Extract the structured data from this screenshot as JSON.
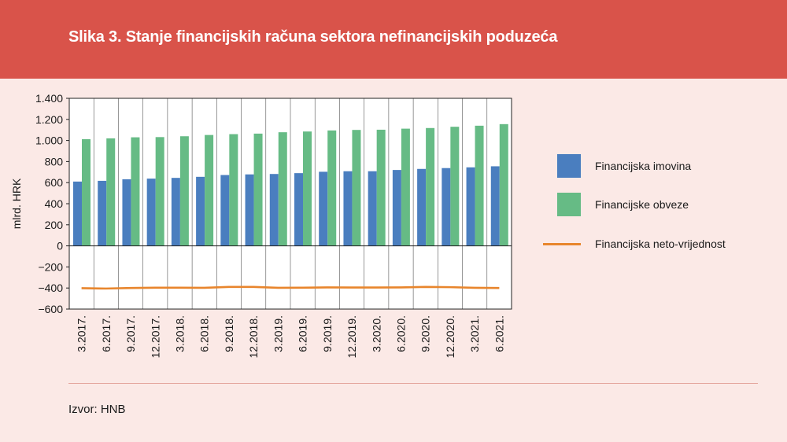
{
  "header": {
    "title": "Slika 3. Stanje financijskih računa sektora nefinancijskih poduzeća"
  },
  "footer": {
    "source": "Izvor: HNB"
  },
  "colors": {
    "header_bg": "#d9534a",
    "background": "#fbe9e6",
    "plot_bg": "#ffffff",
    "assets": "#4a7ebf",
    "liabilities": "#66bb85",
    "net_worth": "#e8852c"
  },
  "chart_data": {
    "type": "bar",
    "title": "",
    "xlabel": "",
    "ylabel": "mlrd. HRK",
    "ylim": [
      -600,
      1400
    ],
    "yticks": [
      -600,
      -400,
      -200,
      0,
      200,
      400,
      600,
      800,
      1000,
      1200,
      1400
    ],
    "ytick_labels": [
      "−600",
      "−400",
      "−200",
      "0",
      "200",
      "400",
      "600",
      "800",
      "1.000",
      "1.200",
      "1.400"
    ],
    "grid": "vertical",
    "legend_position": "right",
    "categories": [
      "3.2017.",
      "6.2017.",
      "9.2017.",
      "12.2017.",
      "3.2018.",
      "6.2018.",
      "9.2018.",
      "12.2018.",
      "3.2019.",
      "6.2019.",
      "9.2019.",
      "12.2019.",
      "3.2020.",
      "6.2020.",
      "9.2020.",
      "12.2020.",
      "3.2021.",
      "6.2021."
    ],
    "series": [
      {
        "name": "Financijska imovina",
        "type": "bar",
        "values": [
          610,
          617,
          632,
          638,
          645,
          655,
          672,
          678,
          682,
          690,
          703,
          708,
          708,
          720,
          730,
          738,
          745,
          755
        ]
      },
      {
        "name": "Financijske obveze",
        "type": "bar",
        "values": [
          1012,
          1020,
          1030,
          1032,
          1040,
          1052,
          1060,
          1065,
          1078,
          1085,
          1095,
          1100,
          1102,
          1112,
          1118,
          1130,
          1140,
          1155
        ]
      },
      {
        "name": "Financijska neto-vrijednost",
        "type": "line",
        "values": [
          -402,
          -405,
          -400,
          -397,
          -397,
          -398,
          -390,
          -390,
          -398,
          -397,
          -394,
          -395,
          -395,
          -394,
          -390,
          -392,
          -398,
          -400
        ]
      }
    ]
  }
}
